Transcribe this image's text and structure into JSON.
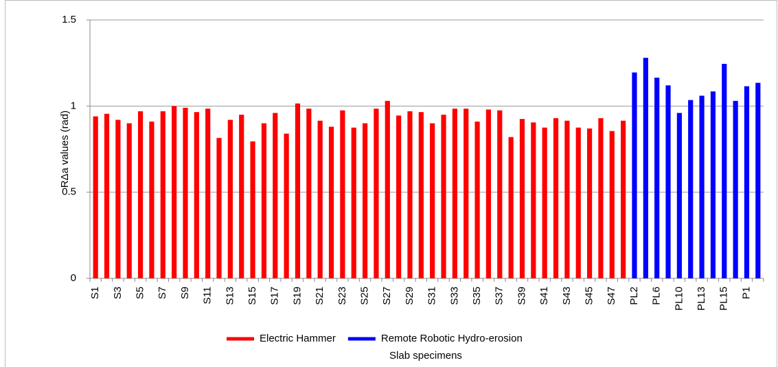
{
  "chart_data": {
    "type": "bar",
    "ylabel": "RΔa values (rad)",
    "xlabel": "Slab specimens",
    "categories": [
      "S1",
      null,
      "S3",
      null,
      "S5",
      null,
      "S7",
      null,
      "S9",
      null,
      "S11",
      null,
      "S13",
      null,
      "S15",
      null,
      "S17",
      null,
      "S19",
      null,
      "S21",
      null,
      "S23",
      null,
      "S25",
      null,
      "S27",
      null,
      "S29",
      null,
      "S31",
      null,
      "S33",
      null,
      "S35",
      null,
      "S37",
      null,
      "S39",
      null,
      "S41",
      null,
      "S43",
      null,
      "S45",
      null,
      "S47",
      null,
      "PL2",
      null,
      "PL6",
      null,
      "PL10",
      null,
      "PL13",
      null,
      "PL15",
      null,
      "P1",
      null
    ],
    "series": [
      {
        "name": "Electric Hammer",
        "color": "#ff0000",
        "values": [
          0.94,
          0.955,
          0.92,
          0.9,
          0.97,
          0.91,
          0.97,
          1.0,
          0.99,
          0.965,
          0.985,
          0.815,
          0.92,
          0.95,
          0.795,
          0.9,
          0.96,
          0.84,
          1.015,
          0.985,
          0.915,
          0.88,
          0.975,
          0.875,
          0.9,
          0.985,
          1.03,
          0.945,
          0.97,
          0.965,
          0.9,
          0.95,
          0.985,
          0.985,
          0.91,
          0.98,
          0.975,
          0.82,
          0.925,
          0.905,
          0.875,
          0.93,
          0.915,
          0.875,
          0.87,
          0.93,
          0.855,
          0.915,
          null,
          null,
          null,
          null,
          null,
          null,
          null,
          null,
          null,
          null,
          null,
          null
        ]
      },
      {
        "name": "Remote Robotic Hydro-erosion",
        "color": "#0000ff",
        "values": [
          null,
          null,
          null,
          null,
          null,
          null,
          null,
          null,
          null,
          null,
          null,
          null,
          null,
          null,
          null,
          null,
          null,
          null,
          null,
          null,
          null,
          null,
          null,
          null,
          null,
          null,
          null,
          null,
          null,
          null,
          null,
          null,
          null,
          null,
          null,
          null,
          null,
          null,
          null,
          null,
          null,
          null,
          null,
          null,
          null,
          null,
          null,
          null,
          1.195,
          1.28,
          1.165,
          1.12,
          0.96,
          1.035,
          1.06,
          1.085,
          1.245,
          1.03,
          1.115,
          1.135
        ]
      }
    ],
    "ylim": [
      0,
      1.5
    ],
    "yticks": [
      0,
      0.5,
      1,
      1.5
    ],
    "grid": true,
    "legend": "bottom"
  }
}
